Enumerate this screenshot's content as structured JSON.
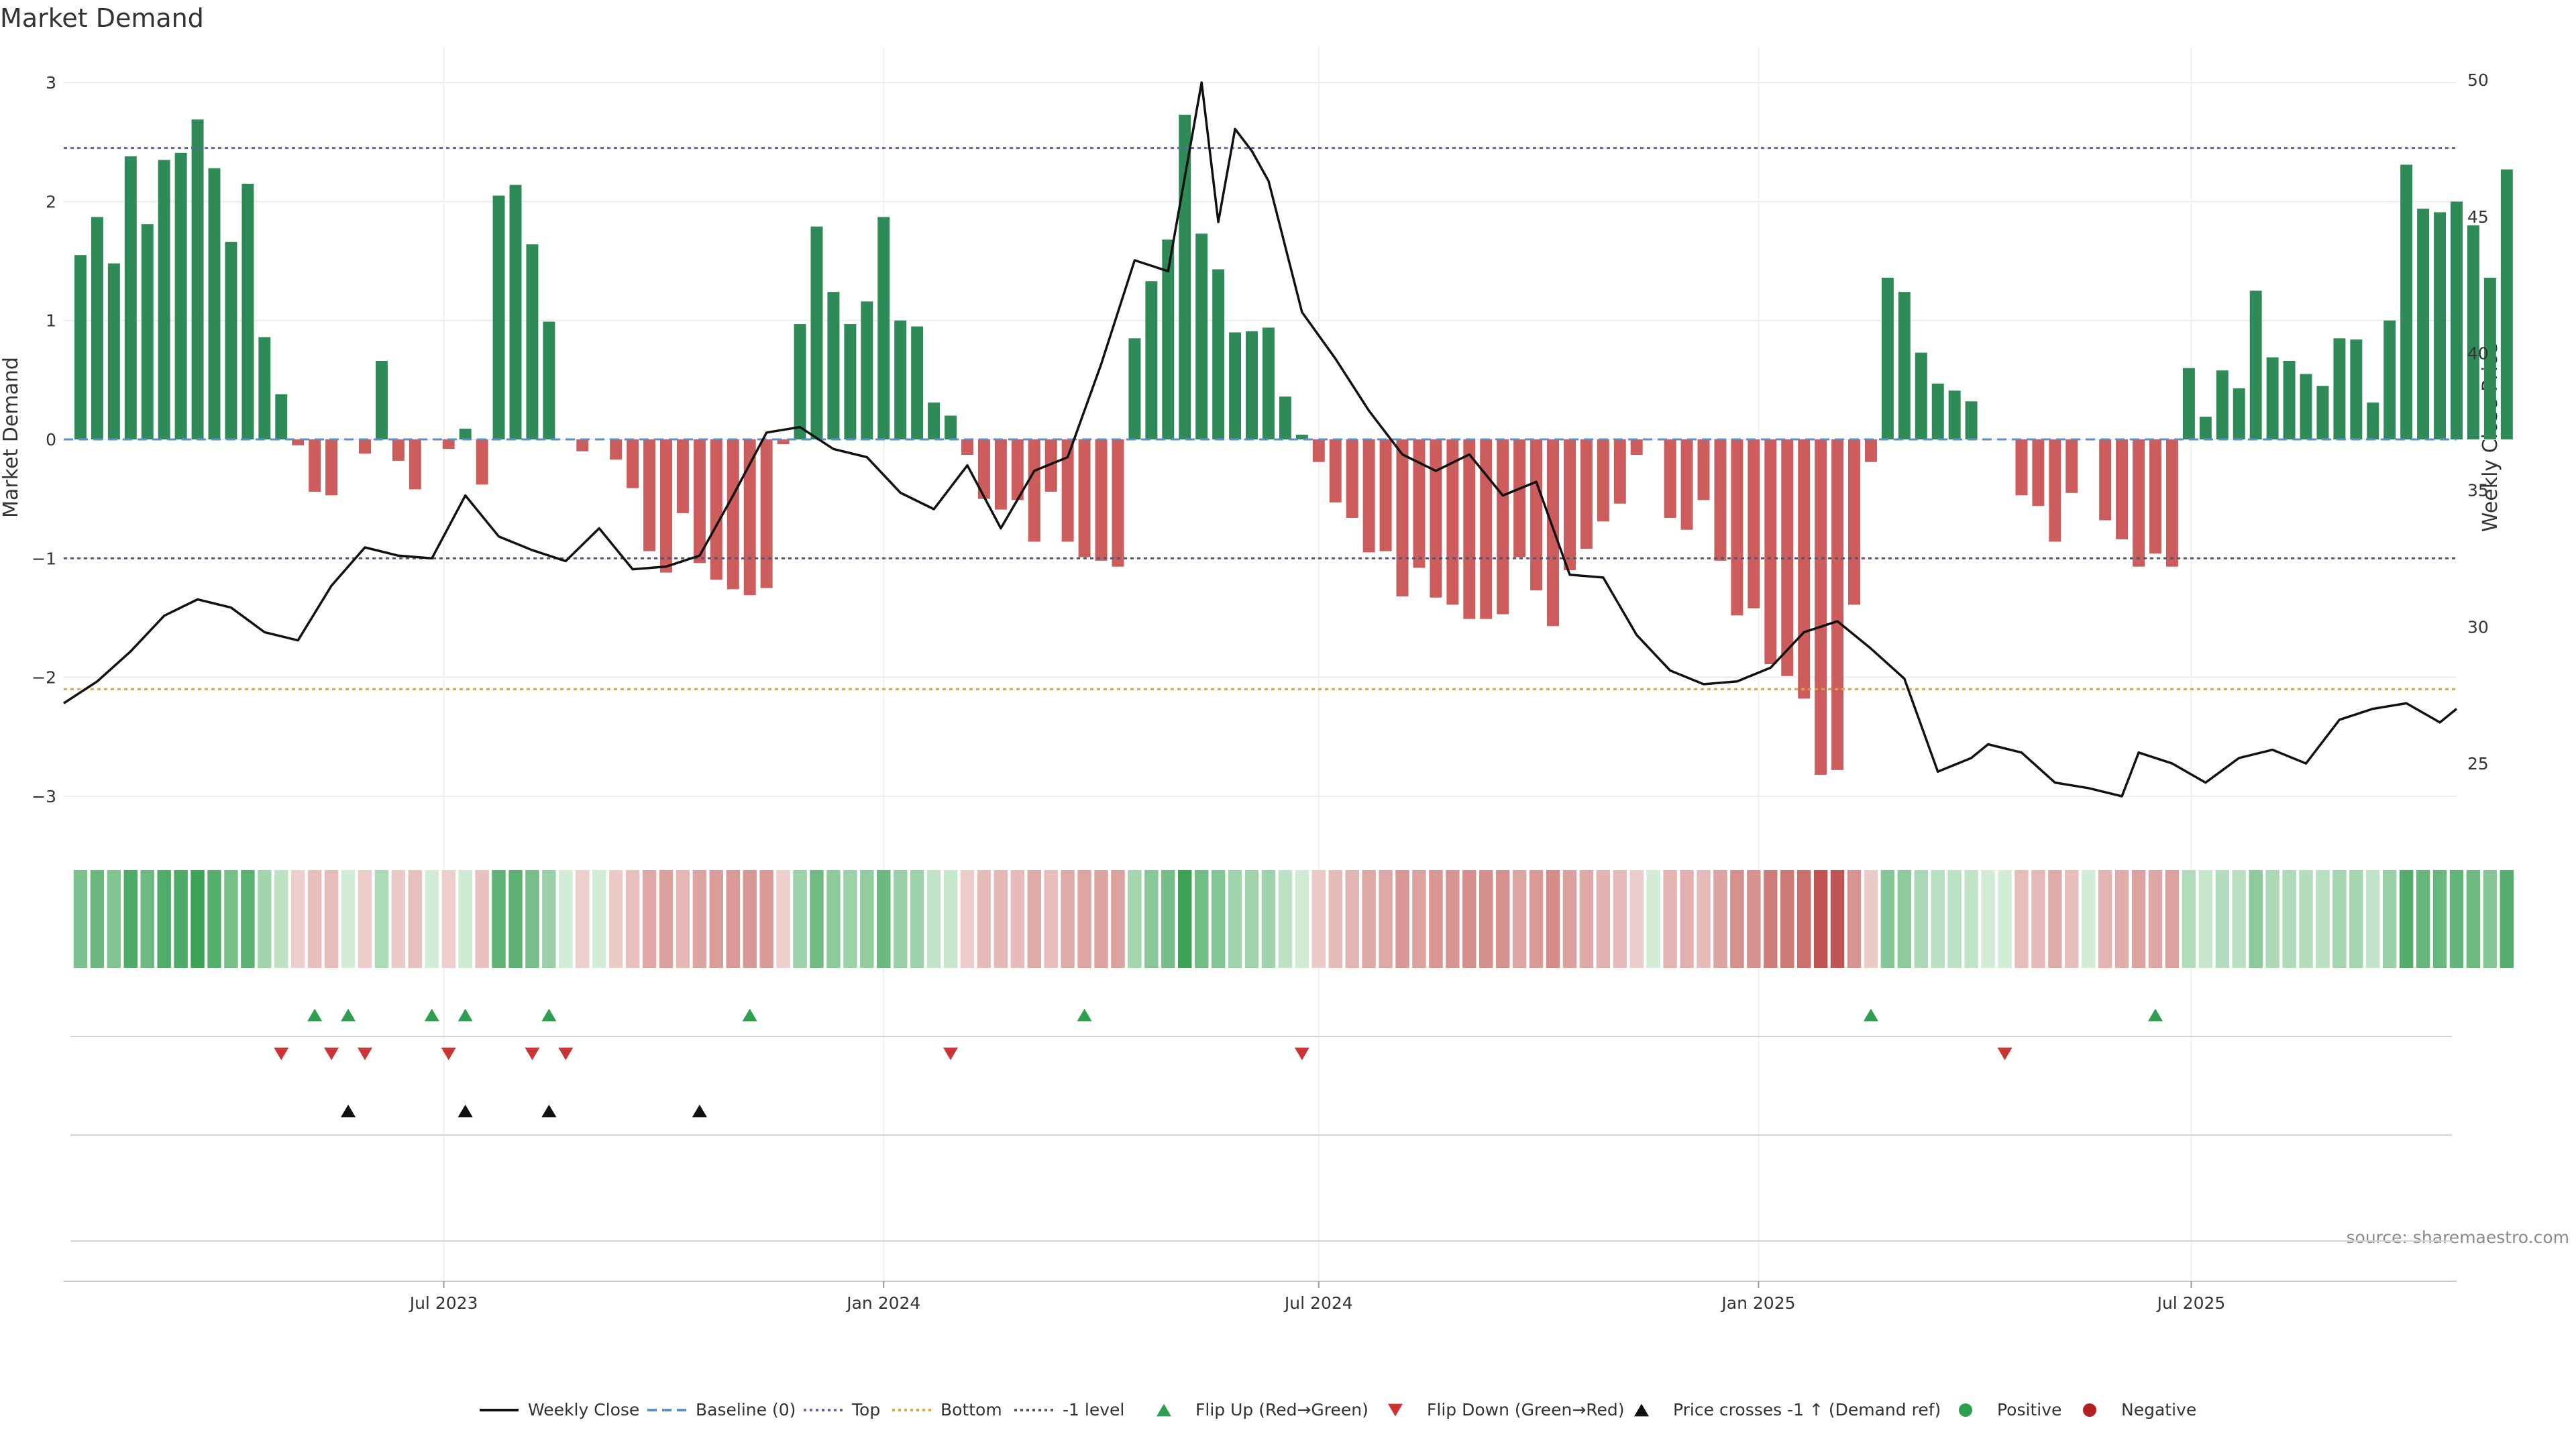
{
  "chart_data": {
    "type": "bar",
    "title": "Market Demand",
    "source": "source: sharemaestro.com",
    "left_axis": {
      "label": "Market Demand",
      "ylim": [
        -3.3,
        3.3
      ],
      "ticks": [
        3,
        2,
        1,
        0,
        -1,
        -2,
        -3
      ],
      "tick_labels": [
        "3",
        "2",
        "1",
        "0",
        "−1",
        "−2",
        "−3"
      ]
    },
    "right_axis": {
      "label": "Weekly Close Price",
      "ylim": [
        22.5,
        51.2
      ],
      "ticks": [
        50,
        45,
        40,
        35,
        30,
        25
      ],
      "tick_labels": [
        "50",
        "45",
        "40",
        "35",
        "30",
        "25"
      ]
    },
    "x_axis": {
      "type": "date",
      "range": [
        "2023-01-23",
        "2025-10-20"
      ],
      "ticks": [
        "2023-07-01",
        "2024-01-01",
        "2024-07-01",
        "2025-01-01",
        "2025-07-01"
      ],
      "tick_labels": [
        "Jul 2023",
        "Jan 2024",
        "Jul 2024",
        "Jan 2025",
        "Jul 2025"
      ]
    },
    "reference_lines": [
      {
        "name": "Baseline (0)",
        "value": 0,
        "color": "#5b8fc9",
        "style": "dashed"
      },
      {
        "name": "Top",
        "value": 2.45,
        "color": "#6b5fb5",
        "style": "dotted"
      },
      {
        "name": "Bottom",
        "value": -2.1,
        "color": "#d9a441",
        "style": "dotted"
      },
      {
        "name": "-1 level",
        "value": -1,
        "color": "#555577",
        "style": "dotted"
      }
    ],
    "series": [
      {
        "name": "Market Demand",
        "type": "bar",
        "start_date": "2023-01-30",
        "interval_days": 7,
        "values": [
          1.55,
          1.87,
          1.48,
          2.38,
          1.81,
          2.35,
          2.41,
          2.69,
          2.28,
          1.66,
          2.15,
          0.86,
          0.38,
          -0.05,
          -0.44,
          -0.47,
          0,
          -0.12,
          0.66,
          -0.18,
          -0.42,
          0,
          -0.08,
          0.09,
          -0.38,
          2.05,
          2.14,
          1.64,
          0.99,
          0,
          -0.1,
          0,
          -0.17,
          -0.41,
          -0.94,
          -1.12,
          -0.62,
          -1.04,
          -1.18,
          -1.26,
          -1.31,
          -1.25,
          -0.04,
          0.97,
          1.79,
          1.24,
          0.97,
          1.16,
          1.87,
          1.0,
          0.95,
          0.31,
          0.2,
          -0.13,
          -0.5,
          -0.59,
          -0.51,
          -0.86,
          -0.44,
          -0.86,
          -0.99,
          -1.02,
          -1.07,
          0.85,
          1.33,
          1.68,
          2.73,
          1.73,
          1.43,
          0.9,
          0.91,
          0.94,
          0.36,
          0.04,
          -0.19,
          -0.53,
          -0.66,
          -0.95,
          -0.94,
          -1.32,
          -1.08,
          -1.33,
          -1.39,
          -1.51,
          -1.51,
          -1.47,
          -0.99,
          -1.27,
          -1.57,
          -1.1,
          -0.92,
          -0.69,
          -0.54,
          -0.13,
          0,
          -0.66,
          -0.76,
          -0.51,
          -1.02,
          -1.48,
          -1.42,
          -1.89,
          -1.99,
          -2.18,
          -2.82,
          -2.78,
          -1.39,
          -0.19,
          1.36,
          1.24,
          0.73,
          0.47,
          0.41,
          0.32,
          0,
          0,
          -0.47,
          -0.56,
          -0.86,
          -0.45,
          0,
          -0.68,
          -0.84,
          -1.07,
          -0.96,
          -1.07,
          0.6,
          0.19,
          0.58,
          0.43,
          1.25,
          0.69,
          0.66,
          0.55,
          0.45,
          0.85,
          0.84,
          0.31,
          1.0,
          2.31,
          1.94,
          1.91,
          2.0,
          1.8,
          1.36,
          2.27
        ],
        "positive_color": "#2e8b57",
        "negative_color": "#cd5c5c"
      },
      {
        "name": "Weekly Close",
        "type": "line",
        "axis": "right",
        "color": "#111111",
        "x": [
          "2023-01-23",
          "2023-02-06",
          "2023-02-20",
          "2023-03-06",
          "2023-03-20",
          "2023-04-03",
          "2023-04-17",
          "2023-05-01",
          "2023-05-15",
          "2023-05-29",
          "2023-06-12",
          "2023-06-26",
          "2023-07-10",
          "2023-07-24",
          "2023-08-07",
          "2023-08-21",
          "2023-09-04",
          "2023-09-18",
          "2023-10-02",
          "2023-10-16",
          "2023-10-30",
          "2023-11-13",
          "2023-11-27",
          "2023-12-11",
          "2023-12-25",
          "2024-01-08",
          "2024-01-22",
          "2024-02-05",
          "2024-02-19",
          "2024-03-04",
          "2024-03-18",
          "2024-04-01",
          "2024-04-15",
          "2024-04-29",
          "2024-05-13",
          "2024-05-20",
          "2024-05-27",
          "2024-06-03",
          "2024-06-10",
          "2024-06-24",
          "2024-07-08",
          "2024-07-22",
          "2024-08-05",
          "2024-08-19",
          "2024-09-02",
          "2024-09-16",
          "2024-09-30",
          "2024-10-14",
          "2024-10-28",
          "2024-11-11",
          "2024-11-25",
          "2024-12-09",
          "2024-12-23",
          "2025-01-06",
          "2025-01-20",
          "2025-02-03",
          "2025-02-17",
          "2025-03-03",
          "2025-03-17",
          "2025-03-31",
          "2025-04-07",
          "2025-04-21",
          "2025-05-05",
          "2025-05-19",
          "2025-06-02",
          "2025-06-09",
          "2025-06-23",
          "2025-07-07",
          "2025-07-21",
          "2025-08-04",
          "2025-08-18",
          "2025-09-01",
          "2025-09-15",
          "2025-09-29",
          "2025-10-13",
          "2025-10-20"
        ],
        "values": [
          27.2,
          28.0,
          29.1,
          30.4,
          31.0,
          30.7,
          29.8,
          29.5,
          31.5,
          32.9,
          32.6,
          32.5,
          34.8,
          33.3,
          32.8,
          32.4,
          33.6,
          32.1,
          32.2,
          32.6,
          34.8,
          37.1,
          37.3,
          36.5,
          36.2,
          34.9,
          34.3,
          35.9,
          33.6,
          35.7,
          36.2,
          39.6,
          43.4,
          43.0,
          49.9,
          44.8,
          48.2,
          47.4,
          46.3,
          41.5,
          39.8,
          37.9,
          36.3,
          35.7,
          36.3,
          34.8,
          35.3,
          31.9,
          31.8,
          29.7,
          28.4,
          27.9,
          28.0,
          28.5,
          29.8,
          30.2,
          29.2,
          28.1,
          24.7,
          25.2,
          25.7,
          25.4,
          24.3,
          24.1,
          23.8,
          25.4,
          25.0,
          24.3,
          25.2,
          25.5,
          25.0,
          26.6,
          27.0,
          27.2,
          26.5,
          27.0
        ]
      }
    ],
    "heat_strip": {
      "name": "Demand heat strip",
      "values_from": "Market Demand"
    },
    "events": [
      {
        "name": "Flip Up (Red→Green)",
        "marker": "triangle-up",
        "color": "#2e9e4f",
        "x": [
          "2023-05-08",
          "2023-05-22",
          "2023-06-26",
          "2023-07-10",
          "2023-08-14",
          "2023-11-06",
          "2024-03-25",
          "2025-02-17",
          "2025-06-16"
        ]
      },
      {
        "name": "Flip Down (Green→Red)",
        "marker": "triangle-down",
        "color": "#cc3333",
        "x": [
          "2023-04-24",
          "2023-05-15",
          "2023-05-29",
          "2023-07-03",
          "2023-08-07",
          "2023-08-21",
          "2024-01-29",
          "2024-06-24",
          "2025-04-14"
        ]
      },
      {
        "name": "Price crosses -1 ↑ (Demand ref)",
        "marker": "triangle-up",
        "color": "#111111",
        "x": [
          "2023-05-22",
          "2023-07-10",
          "2023-08-14",
          "2023-10-16"
        ]
      }
    ],
    "legend": {
      "placement": "bottom",
      "items": [
        {
          "label": "Weekly Close",
          "kind": "line",
          "color": "#111111"
        },
        {
          "label": "Baseline (0)",
          "kind": "dashed",
          "color": "#5b8fc9"
        },
        {
          "label": "Top",
          "kind": "dotted",
          "color": "#6b5fb5"
        },
        {
          "label": "Bottom",
          "kind": "dotted",
          "color": "#d9a441"
        },
        {
          "label": "-1 level",
          "kind": "dotted",
          "color": "#555577"
        },
        {
          "label": "Flip Up (Red→Green)",
          "kind": "triangle-up",
          "color": "#2e9e4f"
        },
        {
          "label": "Flip Down (Green→Red)",
          "kind": "triangle-down",
          "color": "#cc3333"
        },
        {
          "label": "Price crosses -1 ↑ (Demand ref)",
          "kind": "triangle-up",
          "color": "#111111"
        },
        {
          "label": "Positive",
          "kind": "dot",
          "color": "#2e9e4f"
        },
        {
          "label": "Negative",
          "kind": "dot",
          "color": "#b22222"
        }
      ]
    },
    "grid": true
  }
}
